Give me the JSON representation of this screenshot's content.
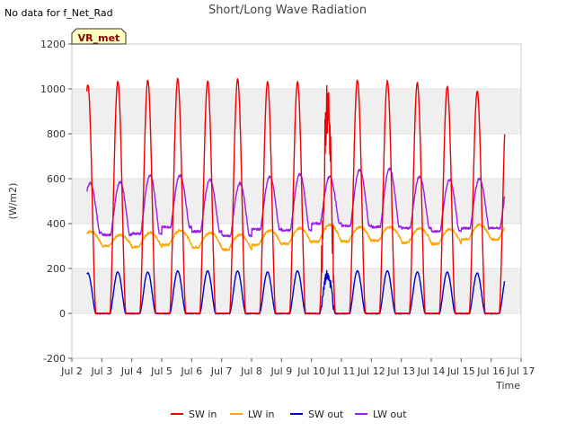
{
  "title": "Short/Long Wave Radiation",
  "note": "No data for f_Net_Rad",
  "badge": "VR_met",
  "colors": {
    "sw_in": "#ee0000",
    "lw_in": "#ffa500",
    "sw_out": "#0000cc",
    "lw_out": "#9a1ee6",
    "band": "#efefef",
    "badge_fill": "#ffffc0"
  },
  "chart_data": {
    "type": "line",
    "title": "Short/Long Wave Radiation",
    "xlabel": "Time",
    "ylabel": "(W/m2)",
    "xlim": [
      2.0,
      17.0
    ],
    "ylim": [
      -200,
      1200
    ],
    "x_ticks": [
      {
        "v": 2,
        "label": "Jul 2"
      },
      {
        "v": 3,
        "label": "Jul 3"
      },
      {
        "v": 4,
        "label": "Jul 4"
      },
      {
        "v": 5,
        "label": "Jul 5"
      },
      {
        "v": 6,
        "label": "Jul 6"
      },
      {
        "v": 7,
        "label": "Jul 7"
      },
      {
        "v": 8,
        "label": "Jul 8"
      },
      {
        "v": 9,
        "label": "Jul 9"
      },
      {
        "v": 10,
        "label": "Jul 10"
      },
      {
        "v": 11,
        "label": "Jul 11"
      },
      {
        "v": 12,
        "label": "Jul 12"
      },
      {
        "v": 13,
        "label": "Jul 13"
      },
      {
        "v": 14,
        "label": "Jul 14"
      },
      {
        "v": 15,
        "label": "Jul 15"
      },
      {
        "v": 16,
        "label": "Jul 16"
      },
      {
        "v": 17,
        "label": "Jul 17"
      }
    ],
    "y_ticks": [
      {
        "v": -200,
        "label": "-200"
      },
      {
        "v": 0,
        "label": "0"
      },
      {
        "v": 200,
        "label": "200"
      },
      {
        "v": 400,
        "label": "400"
      },
      {
        "v": 600,
        "label": "600"
      },
      {
        "v": 800,
        "label": "800"
      },
      {
        "v": 1000,
        "label": "1000"
      },
      {
        "v": 1200,
        "label": "1200"
      }
    ],
    "legend_position": "bottom",
    "x_range_data": [
      2.5,
      16.45
    ],
    "series": [
      {
        "name": "SW in",
        "key": "sw_in",
        "day_peaks": [
          1020,
          1035,
          1040,
          1045,
          1035,
          1045,
          1030,
          1030,
          930,
          1040,
          1035,
          1025,
          1010,
          990
        ]
      },
      {
        "name": "LW in",
        "key": "lw_in",
        "day_night_min": [
          305,
          300,
          295,
          305,
          295,
          285,
          305,
          310,
          320,
          320,
          325,
          315,
          310,
          330
        ],
        "day_max": [
          365,
          350,
          360,
          370,
          360,
          350,
          370,
          380,
          395,
          385,
          385,
          380,
          375,
          395
        ]
      },
      {
        "name": "SW out",
        "key": "sw_out",
        "day_peaks": [
          180,
          185,
          185,
          190,
          190,
          190,
          185,
          190,
          175,
          190,
          190,
          185,
          185,
          180
        ]
      },
      {
        "name": "LW out",
        "key": "lw_out",
        "day_night_min": [
          360,
          350,
          355,
          385,
          365,
          345,
          375,
          370,
          400,
          390,
          385,
          380,
          365,
          380
        ],
        "day_max": [
          580,
          585,
          615,
          615,
          595,
          580,
          610,
          620,
          610,
          640,
          645,
          610,
          595,
          600
        ]
      }
    ]
  }
}
